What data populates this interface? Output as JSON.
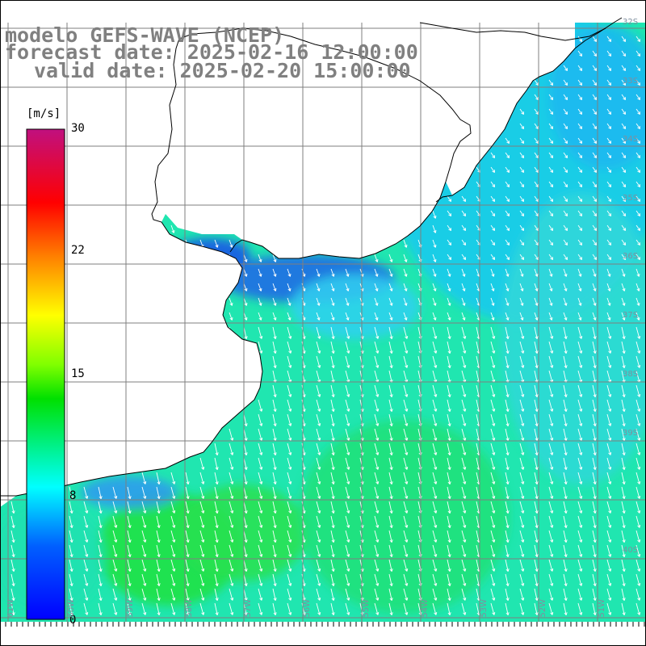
{
  "title": {
    "line1": "modelo GEFS-WAVE (NCEP)",
    "line2": "forecast date: 2025-02-16 12:00:00",
    "line3": "valid date: 2025-02-20 15:00:00"
  },
  "colorbar": {
    "unit": "[m/s]",
    "ticks": [
      {
        "label": "30",
        "value": 30
      },
      {
        "label": "22",
        "value": 22
      },
      {
        "label": "15",
        "value": 15
      },
      {
        "label": "8",
        "value": 8
      },
      {
        "label": "0",
        "value": 0
      }
    ],
    "min": 0,
    "max": 30
  },
  "lat_labels": [
    "32S",
    "33S",
    "34S",
    "35S",
    "36S",
    "37S",
    "38S",
    "39S",
    "40S"
  ],
  "lon_labels": [
    "61W",
    "60W",
    "59W",
    "58W",
    "57W",
    "56W",
    "55W",
    "54W",
    "53W",
    "52W",
    "51W"
  ],
  "field": "wind speed and direction",
  "colors": {
    "land": "#ffffff",
    "grid": "#7f7f7f",
    "coast": "#000000",
    "arrow": "#ffffff",
    "title": "#808080"
  }
}
